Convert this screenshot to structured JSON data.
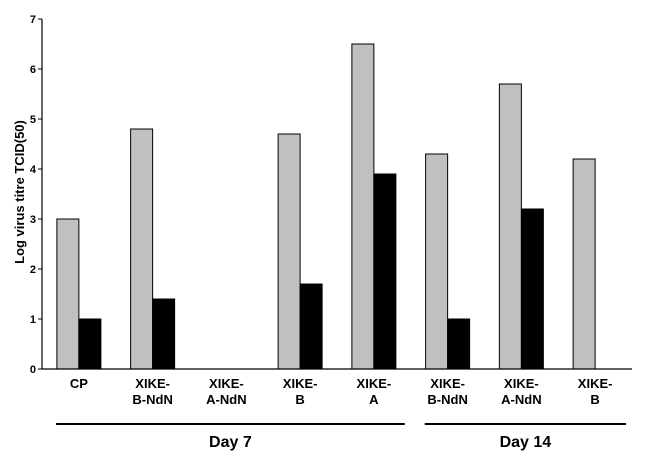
{
  "chart_data": {
    "type": "bar",
    "ylabel": "Log virus titre TCID(50)",
    "ylim": [
      0,
      7
    ],
    "yticks": [
      "0",
      "1",
      "2",
      "3",
      "4",
      "5",
      "6",
      "7"
    ],
    "categories": [
      [
        "CP"
      ],
      [
        "XIKE-",
        "B-NdN"
      ],
      [
        "XIKE-",
        "A-NdN"
      ],
      [
        "XIKE-",
        "B"
      ],
      [
        "XIKE-",
        "A"
      ],
      [
        "XIKE-",
        "B-NdN"
      ],
      [
        "XIKE-",
        "A-NdN"
      ],
      [
        "XIKE-",
        "B"
      ]
    ],
    "series": [
      {
        "color": "#c0c0c0",
        "values": [
          3.0,
          4.8,
          null,
          4.7,
          6.5,
          4.3,
          5.7,
          4.2
        ]
      },
      {
        "color": "#000000",
        "values": [
          1.0,
          1.4,
          null,
          1.7,
          3.9,
          1.0,
          3.2,
          null
        ]
      }
    ],
    "groups": [
      {
        "label": "Day 7",
        "from": 0,
        "to": 4
      },
      {
        "label": "Day 14",
        "from": 5,
        "to": 7
      }
    ],
    "grid": false
  }
}
